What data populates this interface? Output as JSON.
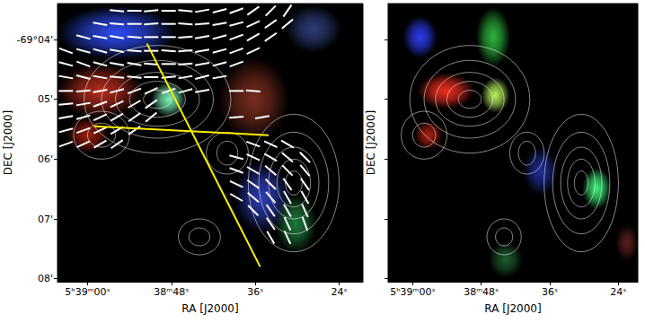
{
  "chart_data": [
    {
      "type": "skymap",
      "xlabel": "RA [J2000]",
      "ylabel": "DEC [J2000]",
      "xlim": [
        64.3,
        20.6
      ],
      "ylim": [
        3.4,
        8.05
      ],
      "xticks": [
        {
          "value": 60,
          "label": "5ʰ39ᵐ00ˢ"
        },
        {
          "value": 48,
          "label": "38ᵐ48ˢ"
        },
        {
          "value": 36,
          "label": "36ˢ"
        },
        {
          "value": 24,
          "label": "24ˢ"
        }
      ],
      "yticks": [
        {
          "value": 4,
          "label": "-69°04'"
        },
        {
          "value": 5,
          "label": "05'"
        },
        {
          "value": 6,
          "label": "06'"
        },
        {
          "value": 7,
          "label": "07'"
        },
        {
          "value": 8,
          "label": "08'"
        }
      ],
      "emission": [
        {
          "color": "#3050ff",
          "x": 55.8,
          "y": 3.89,
          "rx": 8.5,
          "ry": 0.45
        },
        {
          "color": "#c03020",
          "x": 58.2,
          "y": 4.86,
          "rx": 6.1,
          "ry": 0.45
        },
        {
          "color": "#a02010",
          "x": 60.0,
          "y": 5.6,
          "rx": 3.0,
          "ry": 0.3
        },
        {
          "color": "#80ffc0",
          "x": 48.4,
          "y": 5.0,
          "rx": 2.5,
          "ry": 0.3
        },
        {
          "color": "#803020",
          "x": 36.2,
          "y": 5.0,
          "rx": 5.0,
          "ry": 0.7
        },
        {
          "color": "#3040c0",
          "x": 35.0,
          "y": 6.64,
          "rx": 4.0,
          "ry": 0.6
        },
        {
          "color": "#208040",
          "x": 30.2,
          "y": 7.08,
          "rx": 3.0,
          "ry": 0.5
        },
        {
          "color": "#304080",
          "x": 27.7,
          "y": 3.82,
          "rx": 4.0,
          "ry": 0.4
        }
      ],
      "contours": {
        "color": "#ffffff",
        "peaks": [
          {
            "x": 50.0,
            "y": 5.0,
            "rx": [
              2,
              4,
              6,
              8,
              10.5
            ],
            "ry": [
              0.15,
              0.3,
              0.45,
              0.65,
              0.9
            ]
          },
          {
            "x": 30.5,
            "y": 6.4,
            "rx": [
              1.2,
              2.4,
              3.6,
              5,
              6.5
            ],
            "ry": [
              0.2,
              0.4,
              0.6,
              0.85,
              1.15
            ]
          },
          {
            "x": 44.0,
            "y": 7.3,
            "rx": [
              1.5,
              3
            ],
            "ry": [
              0.15,
              0.3
            ]
          },
          {
            "x": 40.0,
            "y": 5.9,
            "rx": [
              1.5,
              3
            ],
            "ry": [
              0.2,
              0.35
            ]
          },
          {
            "x": 58.0,
            "y": 5.6,
            "rx": [
              2,
              4
            ],
            "ry": [
              0.2,
              0.4
            ]
          }
        ]
      },
      "vectors": {
        "color": "#ffffff",
        "values": [
          [
            55.8,
            3.52,
            -5
          ],
          [
            53.3,
            3.52,
            0
          ],
          [
            50.9,
            3.52,
            5
          ],
          [
            48.4,
            3.52,
            0
          ],
          [
            46.0,
            3.52,
            -5
          ],
          [
            43.6,
            3.52,
            10
          ],
          [
            41.1,
            3.52,
            15
          ],
          [
            38.7,
            3.52,
            20
          ],
          [
            36.3,
            3.52,
            35
          ],
          [
            33.8,
            3.52,
            45
          ],
          [
            31.4,
            3.52,
            55
          ],
          [
            58.2,
            3.74,
            -10
          ],
          [
            55.8,
            3.74,
            -5
          ],
          [
            53.3,
            3.74,
            0
          ],
          [
            50.9,
            3.74,
            5
          ],
          [
            48.4,
            3.74,
            0
          ],
          [
            46.0,
            3.74,
            -5
          ],
          [
            43.6,
            3.74,
            5
          ],
          [
            41.1,
            3.74,
            10
          ],
          [
            38.7,
            3.74,
            15
          ],
          [
            36.3,
            3.74,
            25
          ],
          [
            33.8,
            3.74,
            35
          ],
          [
            31.4,
            3.74,
            40
          ],
          [
            60.6,
            3.96,
            -15
          ],
          [
            58.2,
            3.96,
            -10
          ],
          [
            55.8,
            3.96,
            -10
          ],
          [
            53.3,
            3.96,
            -5
          ],
          [
            50.9,
            3.96,
            0
          ],
          [
            48.4,
            3.96,
            0
          ],
          [
            46.0,
            3.96,
            5
          ],
          [
            43.6,
            3.96,
            10
          ],
          [
            41.1,
            3.96,
            15
          ],
          [
            38.7,
            3.96,
            20
          ],
          [
            36.3,
            3.96,
            30
          ],
          [
            33.8,
            3.96,
            35
          ],
          [
            63.1,
            4.19,
            -20
          ],
          [
            60.6,
            4.19,
            -15
          ],
          [
            58.2,
            4.19,
            -15
          ],
          [
            55.8,
            4.19,
            -10
          ],
          [
            53.3,
            4.19,
            -5
          ],
          [
            50.9,
            4.19,
            0
          ],
          [
            48.4,
            4.19,
            -5
          ],
          [
            46.0,
            4.19,
            5
          ],
          [
            43.6,
            4.19,
            10
          ],
          [
            41.1,
            4.19,
            15
          ],
          [
            38.7,
            4.19,
            20
          ],
          [
            36.3,
            4.19,
            25
          ],
          [
            63.1,
            4.41,
            -15
          ],
          [
            60.6,
            4.41,
            -20
          ],
          [
            58.2,
            4.41,
            -15
          ],
          [
            55.8,
            4.41,
            -10
          ],
          [
            53.3,
            4.41,
            -10
          ],
          [
            50.9,
            4.41,
            -5
          ],
          [
            48.4,
            4.41,
            0
          ],
          [
            46.0,
            4.41,
            5
          ],
          [
            43.6,
            4.41,
            10
          ],
          [
            41.1,
            4.41,
            15
          ],
          [
            38.7,
            4.41,
            20
          ],
          [
            63.1,
            4.63,
            -10
          ],
          [
            60.6,
            4.63,
            -15
          ],
          [
            58.2,
            4.63,
            -10
          ],
          [
            55.8,
            4.63,
            -5
          ],
          [
            53.3,
            4.63,
            -5
          ],
          [
            50.9,
            4.63,
            0
          ],
          [
            48.4,
            4.63,
            5
          ],
          [
            46.0,
            4.63,
            10
          ],
          [
            43.6,
            4.63,
            15
          ],
          [
            41.1,
            4.63,
            10
          ],
          [
            63.1,
            4.86,
            0
          ],
          [
            60.6,
            4.86,
            5
          ],
          [
            58.2,
            4.86,
            10
          ],
          [
            55.8,
            4.86,
            15
          ],
          [
            53.3,
            4.86,
            20
          ],
          [
            50.9,
            4.86,
            25
          ],
          [
            48.4,
            4.86,
            20
          ],
          [
            46.0,
            4.86,
            15
          ],
          [
            43.6,
            4.86,
            10
          ],
          [
            38.7,
            4.86,
            0
          ],
          [
            36.3,
            4.86,
            -5
          ],
          [
            63.1,
            5.08,
            5
          ],
          [
            60.6,
            5.08,
            10
          ],
          [
            58.2,
            5.08,
            20
          ],
          [
            55.8,
            5.08,
            25
          ],
          [
            53.3,
            5.08,
            30
          ],
          [
            50.9,
            5.08,
            35
          ],
          [
            63.1,
            5.3,
            10
          ],
          [
            60.6,
            5.3,
            15
          ],
          [
            58.2,
            5.3,
            25
          ],
          [
            55.8,
            5.3,
            30
          ],
          [
            53.3,
            5.3,
            35
          ],
          [
            50.9,
            5.3,
            40
          ],
          [
            38.7,
            5.3,
            5
          ],
          [
            35.0,
            5.3,
            10
          ],
          [
            63.1,
            5.52,
            15
          ],
          [
            60.6,
            5.52,
            20
          ],
          [
            58.2,
            5.52,
            25
          ],
          [
            55.8,
            5.52,
            30
          ],
          [
            53.3,
            5.52,
            35
          ],
          [
            63.1,
            5.75,
            20
          ],
          [
            60.6,
            5.75,
            25
          ],
          [
            58.2,
            5.75,
            30
          ],
          [
            55.8,
            5.75,
            35
          ],
          [
            36.3,
            5.75,
            -20
          ],
          [
            33.8,
            5.75,
            -25
          ],
          [
            31.4,
            5.75,
            -30
          ],
          [
            38.7,
            5.97,
            -15
          ],
          [
            36.3,
            5.97,
            -25
          ],
          [
            33.8,
            5.97,
            -30
          ],
          [
            31.4,
            5.97,
            -40
          ],
          [
            28.9,
            5.97,
            -45
          ],
          [
            38.7,
            6.19,
            -20
          ],
          [
            36.3,
            6.19,
            -30
          ],
          [
            33.8,
            6.19,
            -40
          ],
          [
            31.4,
            6.19,
            -45
          ],
          [
            28.9,
            6.19,
            -50
          ],
          [
            38.7,
            6.42,
            -25
          ],
          [
            36.3,
            6.42,
            -35
          ],
          [
            33.8,
            6.42,
            -45
          ],
          [
            31.4,
            6.42,
            -55
          ],
          [
            28.9,
            6.42,
            -55
          ],
          [
            38.7,
            6.64,
            -30
          ],
          [
            36.3,
            6.64,
            -40
          ],
          [
            33.8,
            6.64,
            -50
          ],
          [
            31.4,
            6.64,
            -60
          ],
          [
            28.9,
            6.64,
            -60
          ],
          [
            36.3,
            6.86,
            -45
          ],
          [
            33.8,
            6.86,
            -55
          ],
          [
            31.4,
            6.86,
            -60
          ],
          [
            28.9,
            6.86,
            -65
          ],
          [
            33.8,
            7.08,
            -55
          ],
          [
            31.4,
            7.08,
            -65
          ],
          [
            28.9,
            7.08,
            -70
          ],
          [
            33.8,
            7.31,
            -60
          ],
          [
            31.4,
            7.31,
            -65
          ]
        ]
      },
      "lines": {
        "color": "#ffee00",
        "segments": [
          [
            [
              51.5,
              4.07
            ],
            [
              35.3,
              7.8
            ]
          ],
          [
            [
              59.06,
              5.45
            ],
            [
              34.1,
              5.6
            ]
          ]
        ]
      }
    },
    {
      "type": "skymap",
      "xlabel": "RA [J2000]",
      "ylabel": "DEC [J2000]",
      "xlim": [
        64.3,
        20.6
      ],
      "ylim": [
        3.4,
        8.05
      ],
      "xticks": [
        {
          "value": 60,
          "label": "5ʰ39ᵐ00ˢ"
        },
        {
          "value": 48,
          "label": "38ᵐ48ˢ"
        },
        {
          "value": 36,
          "label": "36ˢ"
        },
        {
          "value": 24,
          "label": "24ˢ"
        }
      ],
      "yticks": [
        4,
        5,
        6,
        7,
        8
      ],
      "tick_labels": "x",
      "emission": [
        {
          "color": "#3040ff",
          "x": 58.7,
          "y": 3.96,
          "rx": 3.0,
          "ry": 0.35
        },
        {
          "color": "#30c040",
          "x": 45.9,
          "y": 3.96,
          "rx": 3.0,
          "ry": 0.5
        },
        {
          "color": "#ff3020",
          "x": 54.2,
          "y": 4.86,
          "rx": 5.0,
          "ry": 0.3
        },
        {
          "color": "#c0ff60",
          "x": 45.5,
          "y": 4.93,
          "rx": 2.5,
          "ry": 0.3
        },
        {
          "color": "#b02010",
          "x": 57.2,
          "y": 5.6,
          "rx": 2.5,
          "ry": 0.25
        },
        {
          "color": "#2030a0",
          "x": 37.6,
          "y": 6.2,
          "rx": 3.0,
          "ry": 0.4
        },
        {
          "color": "#40ff80",
          "x": 27.8,
          "y": 6.49,
          "rx": 2.5,
          "ry": 0.35
        },
        {
          "color": "#206030",
          "x": 43.7,
          "y": 7.68,
          "rx": 3.0,
          "ry": 0.3
        },
        {
          "color": "#602020",
          "x": 22.5,
          "y": 7.4,
          "rx": 2.0,
          "ry": 0.3
        }
      ],
      "contours": {
        "color": "#ffffff",
        "peaks": [
          {
            "x": 50.0,
            "y": 5.0,
            "rx": [
              2,
              4,
              6,
              8,
              10.5
            ],
            "ry": [
              0.15,
              0.3,
              0.45,
              0.65,
              0.9
            ]
          },
          {
            "x": 30.5,
            "y": 6.4,
            "rx": [
              1.2,
              2.4,
              3.6,
              5,
              6.5
            ],
            "ry": [
              0.2,
              0.4,
              0.6,
              0.85,
              1.15
            ]
          },
          {
            "x": 44.0,
            "y": 7.3,
            "rx": [
              1.5,
              3
            ],
            "ry": [
              0.15,
              0.3
            ]
          },
          {
            "x": 40.0,
            "y": 5.9,
            "rx": [
              1.5,
              3
            ],
            "ry": [
              0.2,
              0.35
            ]
          },
          {
            "x": 58.0,
            "y": 5.6,
            "rx": [
              2,
              4
            ],
            "ry": [
              0.2,
              0.4
            ]
          }
        ]
      }
    }
  ]
}
